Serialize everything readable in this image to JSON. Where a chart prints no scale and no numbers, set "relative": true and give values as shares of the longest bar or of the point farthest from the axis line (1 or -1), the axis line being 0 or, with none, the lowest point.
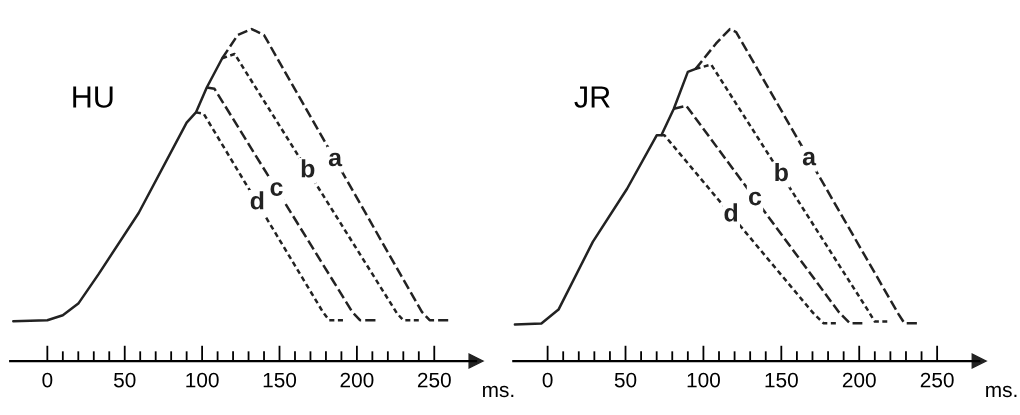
{
  "chart_data": [
    {
      "type": "line",
      "title": "HU",
      "xlabel": "ms.",
      "relative": true,
      "xlim": [
        -24,
        277
      ],
      "xticks": [
        0,
        {
          "value": 10,
          "label": null
        },
        {
          "value": 20,
          "label": null
        },
        {
          "value": 30,
          "label": null
        },
        {
          "value": 40,
          "label": null
        },
        50,
        {
          "value": 60,
          "label": null
        },
        {
          "value": 70,
          "label": null
        },
        {
          "value": 80,
          "label": null
        },
        {
          "value": 90,
          "label": null
        },
        100,
        {
          "value": 110,
          "label": null
        },
        {
          "value": 120,
          "label": null
        },
        {
          "value": 130,
          "label": null
        },
        {
          "value": 140,
          "label": null
        },
        150,
        {
          "value": 160,
          "label": null
        },
        {
          "value": 170,
          "label": null
        },
        {
          "value": 180,
          "label": null
        },
        {
          "value": 190,
          "label": null
        },
        200,
        {
          "value": 210,
          "label": null
        },
        {
          "value": 220,
          "label": null
        },
        {
          "value": 230,
          "label": null
        },
        {
          "value": 240,
          "label": null
        },
        250
      ],
      "series": [
        {
          "color": "#222222",
          "line_style": "solid",
          "x": [
            -22,
            0,
            10,
            20,
            33,
            59,
            90,
            96,
            103,
            113
          ],
          "values": [
            0.12,
            0.123,
            0.138,
            0.173,
            0.261,
            0.446,
            0.718,
            0.749,
            0.824,
            0.912
          ]
        },
        {
          "name": "a",
          "color": "#222222",
          "line_style": "dashed",
          "x": [
            113,
            123,
            132,
            140,
            242,
            247,
            259
          ],
          "values": [
            0.912,
            0.982,
            1,
            0.982,
            0.148,
            0.123,
            0.123
          ]
        },
        {
          "name": "b",
          "color": "#222222",
          "line_style": "dotted",
          "x": [
            113,
            121,
            226,
            230,
            240
          ],
          "values": [
            0.912,
            0.925,
            0.143,
            0.123,
            0.123
          ]
        },
        {
          "name": "c",
          "color": "#222222",
          "line_style": "dashed",
          "x": [
            103,
            108,
            197,
            202,
            212
          ],
          "values": [
            0.824,
            0.82,
            0.148,
            0.123,
            0.123
          ]
        },
        {
          "name": "d",
          "color": "#222222",
          "line_style": "dotted",
          "x": [
            96,
            101,
            178,
            182,
            191
          ],
          "values": [
            0.749,
            0.745,
            0.148,
            0.123,
            0.123
          ]
        }
      ]
    },
    {
      "type": "line",
      "title": "JR",
      "xlabel": "ms.",
      "relative": true,
      "xlim": [
        -22,
        277
      ],
      "xticks": [
        0,
        {
          "value": 10,
          "label": null
        },
        {
          "value": 20,
          "label": null
        },
        {
          "value": 30,
          "label": null
        },
        {
          "value": 40,
          "label": null
        },
        50,
        {
          "value": 60,
          "label": null
        },
        {
          "value": 70,
          "label": null
        },
        {
          "value": 80,
          "label": null
        },
        {
          "value": 90,
          "label": null
        },
        100,
        {
          "value": 110,
          "label": null
        },
        {
          "value": 120,
          "label": null
        },
        {
          "value": 130,
          "label": null
        },
        {
          "value": 140,
          "label": null
        },
        150,
        {
          "value": 160,
          "label": null
        },
        {
          "value": 170,
          "label": null
        },
        {
          "value": 180,
          "label": null
        },
        {
          "value": 190,
          "label": null
        },
        200,
        {
          "value": 210,
          "label": null
        },
        {
          "value": 220,
          "label": null
        },
        {
          "value": 230,
          "label": null
        },
        {
          "value": 240,
          "label": null
        },
        250
      ],
      "series": [
        {
          "color": "#222222",
          "line_style": "solid",
          "x": [
            -21,
            -4,
            7,
            29,
            51,
            70,
            73,
            81,
            90,
            95
          ],
          "values": [
            0.11,
            0.113,
            0.155,
            0.359,
            0.519,
            0.68,
            0.68,
            0.76,
            0.871,
            0.88
          ]
        },
        {
          "name": "a",
          "color": "#222222",
          "line_style": "dashed",
          "x": [
            95,
            108,
            117,
            121,
            225,
            229,
            237
          ],
          "values": [
            0.88,
            0.956,
            1,
            0.991,
            0.143,
            0.114,
            0.114
          ]
        },
        {
          "name": "b",
          "color": "#222222",
          "line_style": "dotted",
          "x": [
            95,
            105,
            205,
            210,
            218
          ],
          "values": [
            0.88,
            0.893,
            0.157,
            0.119,
            0.119
          ]
        },
        {
          "name": "c",
          "color": "#222222",
          "line_style": "dashed",
          "x": [
            81,
            89,
            187,
            194,
            202
          ],
          "values": [
            0.76,
            0.769,
            0.147,
            0.114,
            0.114
          ]
        },
        {
          "name": "d",
          "color": "#222222",
          "line_style": "dotted",
          "x": [
            73,
            75,
            170,
            177,
            185
          ],
          "values": [
            0.68,
            0.68,
            0.147,
            0.114,
            0.114
          ]
        }
      ]
    }
  ]
}
